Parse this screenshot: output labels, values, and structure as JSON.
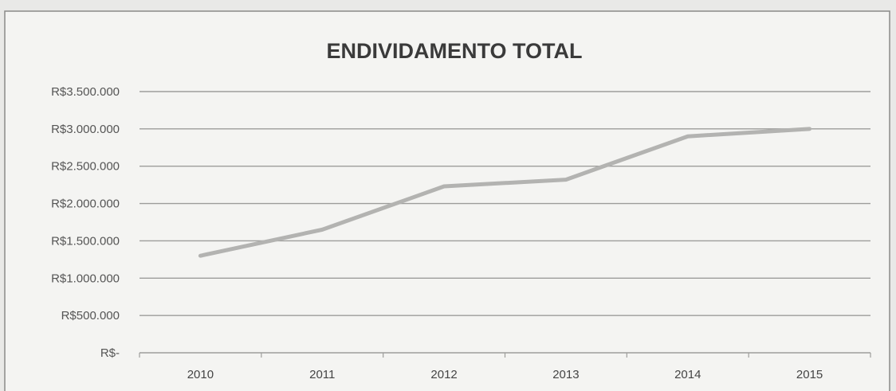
{
  "chart_data": {
    "type": "line",
    "title": "ENDIVIDAMENTO TOTAL",
    "categories": [
      "2010",
      "2011",
      "2012",
      "2013",
      "2014",
      "2015"
    ],
    "series": [
      {
        "values": [
          1300000,
          1650000,
          2230000,
          2320000,
          2900000,
          3000000
        ]
      }
    ],
    "ylim": [
      0,
      3500000
    ],
    "y_ticks": [
      0,
      500000,
      1000000,
      1500000,
      2000000,
      2500000,
      3000000,
      3500000
    ],
    "y_tick_labels": [
      "R$-",
      "R$500.000",
      "R$1.000.000",
      "R$1.500.000",
      "R$2.000.000",
      "R$2.500.000",
      "R$3.000.000",
      "R$3.500.000"
    ],
    "grid": true,
    "legend": "none",
    "line_color": "#b3b3b1"
  }
}
